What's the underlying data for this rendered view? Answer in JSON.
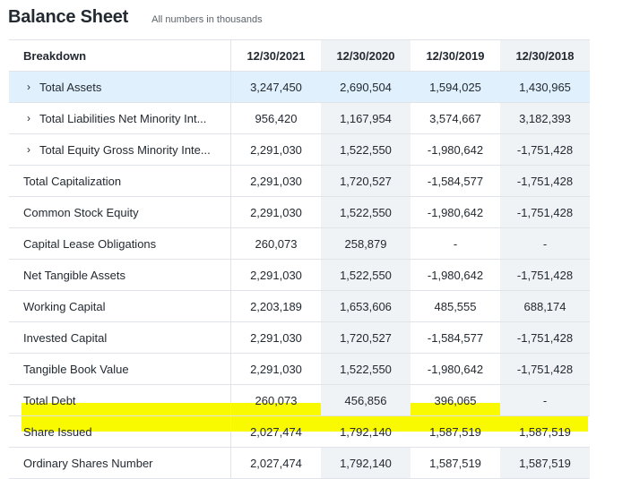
{
  "header": {
    "title": "Balance Sheet",
    "subtitle": "All numbers in thousands"
  },
  "table": {
    "columns": [
      "Breakdown",
      "12/30/2021",
      "12/30/2020",
      "12/30/2019",
      "12/30/2018"
    ],
    "rows": [
      {
        "label": "Total Assets",
        "expandable": true,
        "values": [
          "3,247,450",
          "2,690,504",
          "1,594,025",
          "1,430,965"
        ]
      },
      {
        "label": "Total Liabilities Net Minority Int...",
        "expandable": true,
        "values": [
          "956,420",
          "1,167,954",
          "3,574,667",
          "3,182,393"
        ]
      },
      {
        "label": "Total Equity Gross Minority Inte...",
        "expandable": true,
        "values": [
          "2,291,030",
          "1,522,550",
          "-1,980,642",
          "-1,751,428"
        ]
      },
      {
        "label": "Total Capitalization",
        "expandable": false,
        "values": [
          "2,291,030",
          "1,720,527",
          "-1,584,577",
          "-1,751,428"
        ]
      },
      {
        "label": "Common Stock Equity",
        "expandable": false,
        "values": [
          "2,291,030",
          "1,522,550",
          "-1,980,642",
          "-1,751,428"
        ]
      },
      {
        "label": "Capital Lease Obligations",
        "expandable": false,
        "values": [
          "260,073",
          "258,879",
          "-",
          "-"
        ]
      },
      {
        "label": "Net Tangible Assets",
        "expandable": false,
        "values": [
          "2,291,030",
          "1,522,550",
          "-1,980,642",
          "-1,751,428"
        ]
      },
      {
        "label": "Working Capital",
        "expandable": false,
        "values": [
          "2,203,189",
          "1,653,606",
          "485,555",
          "688,174"
        ]
      },
      {
        "label": "Invested Capital",
        "expandable": false,
        "values": [
          "2,291,030",
          "1,720,527",
          "-1,584,577",
          "-1,751,428"
        ]
      },
      {
        "label": "Tangible Book Value",
        "expandable": false,
        "values": [
          "2,291,030",
          "1,522,550",
          "-1,980,642",
          "-1,751,428"
        ]
      },
      {
        "label": "Total Debt",
        "expandable": false,
        "values": [
          "260,073",
          "456,856",
          "396,065",
          "-"
        ]
      },
      {
        "label": "Share Issued",
        "expandable": false,
        "values": [
          "2,027,474",
          "1,792,140",
          "1,587,519",
          "1,587,519"
        ]
      },
      {
        "label": "Ordinary Shares Number",
        "expandable": false,
        "values": [
          "2,027,474",
          "1,792,140",
          "1,587,519",
          "1,587,519"
        ]
      }
    ]
  },
  "icons": {
    "expand": "chevron-right-icon"
  },
  "colors": {
    "highlight": "#f9fa00",
    "selected_row": "#e0f0fd",
    "shaded_column": "#f0f3f5"
  }
}
